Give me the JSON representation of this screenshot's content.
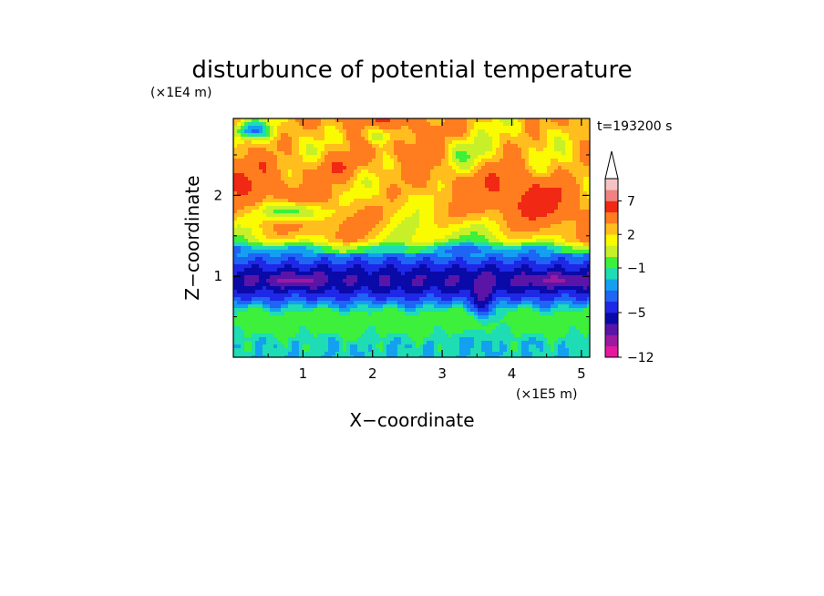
{
  "chart_data": {
    "type": "heatmap",
    "title": "disturbunce of potential temperature",
    "xlabel": "X−coordinate",
    "ylabel": "Z−coordinate",
    "x_unit": "(×1E5 m)",
    "y_unit": "(×1E4 m)",
    "time_label": "t=193200 s",
    "xlim": [
      0,
      5.12
    ],
    "ylim": [
      0,
      2.95
    ],
    "x_ticks": [
      1,
      2,
      3,
      4,
      5
    ],
    "y_ticks": [
      1,
      2
    ],
    "x_tick_labels": [
      "1",
      "2",
      "3",
      "4",
      "5"
    ],
    "y_tick_labels": [
      "1",
      "2"
    ],
    "colorbar": {
      "levels": [
        {
          "lo": -12,
          "hi": -10,
          "color": "#e6199e"
        },
        {
          "lo": -10,
          "hi": -8,
          "color": "#9b1aa0"
        },
        {
          "lo": -8,
          "hi": -6,
          "color": "#5a14a8"
        },
        {
          "lo": -6,
          "hi": -5,
          "color": "#0a0aa8"
        },
        {
          "lo": -5,
          "hi": -4,
          "color": "#1e28e6"
        },
        {
          "lo": -4,
          "hi": -3,
          "color": "#1e64f5"
        },
        {
          "lo": -3,
          "hi": -2,
          "color": "#14a0f0"
        },
        {
          "lo": -2,
          "hi": -1,
          "color": "#1edcb4"
        },
        {
          "lo": -1,
          "hi": 0,
          "color": "#3cf03c"
        },
        {
          "lo": 0,
          "hi": 1,
          "color": "#c8f028"
        },
        {
          "lo": 1,
          "hi": 2,
          "color": "#fafa00"
        },
        {
          "lo": 2,
          "hi": 3,
          "color": "#ffbe1e"
        },
        {
          "lo": 3,
          "hi": 5,
          "color": "#ff7d1e"
        },
        {
          "lo": 5,
          "hi": 7,
          "color": "#f02814"
        },
        {
          "lo": 7,
          "hi": 9,
          "color": "#f08282"
        },
        {
          "lo": 9,
          "hi": 11,
          "color": "#f5c3c3"
        }
      ],
      "labels": [
        "7",
        "2",
        "−1",
        "−5",
        "−12"
      ],
      "label_values": [
        7,
        2,
        -1,
        -5,
        -12
      ],
      "extend": "max"
    }
  }
}
